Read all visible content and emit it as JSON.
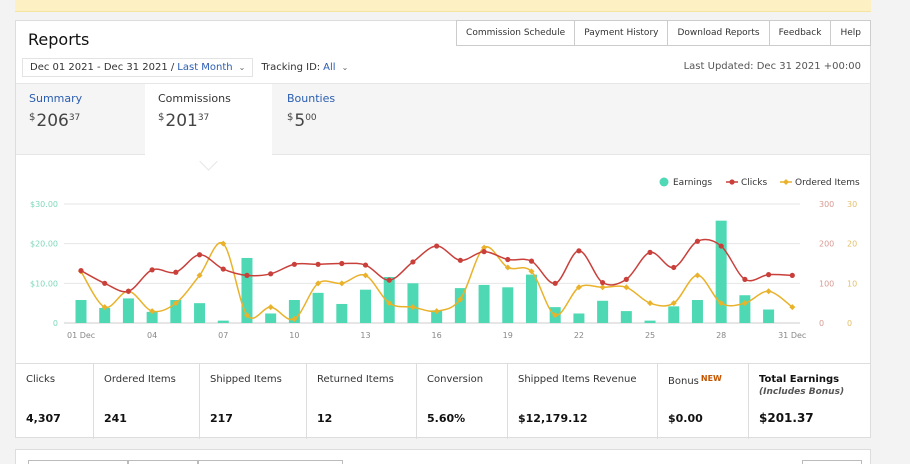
{
  "header": {
    "title": "Reports",
    "buttons": [
      "Commission Schedule",
      "Payment History",
      "Download Reports",
      "Feedback",
      "Help"
    ]
  },
  "filters": {
    "date_range": "Dec 01 2021 - Dec 31 2021 /",
    "date_preset": "Last Month",
    "tracking_label": "Tracking ID:",
    "tracking_value": "All"
  },
  "last_updated": "Last Updated: Dec 31 2021 +00:00",
  "tabs": [
    {
      "label": "Summary",
      "currency": "$",
      "whole": "206",
      "decimal": "37",
      "active": false
    },
    {
      "label": "Commissions",
      "currency": "$",
      "whole": "201",
      "decimal": "37",
      "active": true
    },
    {
      "label": "Bounties",
      "currency": "$",
      "whole": "5",
      "decimal": "00",
      "active": false
    }
  ],
  "colors": {
    "earnings": "#4fd8b4",
    "clicks": "#c9403b",
    "ordered_items": "#e9b22a",
    "link": "#2a5db0"
  },
  "chart_data": {
    "type": "bar",
    "x": [
      1,
      2,
      3,
      4,
      5,
      6,
      7,
      8,
      9,
      10,
      11,
      12,
      13,
      14,
      15,
      16,
      17,
      18,
      19,
      20,
      21,
      22,
      23,
      24,
      25,
      26,
      27,
      28,
      29,
      30,
      31
    ],
    "x_tick_labels": [
      "01 Dec",
      "04",
      "07",
      "10",
      "13",
      "16",
      "19",
      "22",
      "25",
      "28",
      "31 Dec"
    ],
    "series": [
      {
        "name": "Earnings",
        "type": "bar",
        "axis": "left",
        "values": [
          5.8,
          3.8,
          6.2,
          2.8,
          5.8,
          5.0,
          0.6,
          16.4,
          2.4,
          5.8,
          7.6,
          4.8,
          8.4,
          11.6,
          10.0,
          3.2,
          8.8,
          9.6,
          9.0,
          12.2,
          4.0,
          2.4,
          5.6,
          3.0,
          0.6,
          4.2,
          5.8,
          25.8,
          7.0,
          3.4,
          0.0
        ]
      },
      {
        "name": "Clicks",
        "type": "line",
        "axis": "right",
        "values": [
          132,
          100,
          80,
          134,
          128,
          172,
          136,
          120,
          124,
          148,
          148,
          150,
          146,
          108,
          154,
          194,
          158,
          180,
          160,
          156,
          100,
          182,
          102,
          110,
          178,
          140,
          206,
          194,
          110,
          122,
          120
        ]
      },
      {
        "name": "Ordered Items",
        "type": "line",
        "axis": "right2",
        "values": [
          13,
          4,
          8,
          3,
          5,
          12,
          20,
          2,
          4,
          1,
          10,
          10,
          12,
          5,
          4,
          3,
          6,
          19,
          14,
          13,
          2,
          9,
          9,
          9,
          5,
          5,
          12,
          5,
          5,
          8,
          4
        ]
      }
    ],
    "y_left": {
      "ticks": [
        "0",
        "$10.00",
        "$20.00",
        "$30.00"
      ],
      "range": [
        0,
        30
      ]
    },
    "y_right": {
      "ticks": [
        "0",
        "100",
        "200",
        "300"
      ],
      "range": [
        0,
        300
      ]
    },
    "y_right2": {
      "ticks": [
        "0",
        "10",
        "20",
        "30"
      ],
      "range": [
        0,
        30
      ]
    },
    "legend": [
      "Earnings",
      "Clicks",
      "Ordered Items"
    ],
    "legend_position": "top-right",
    "grid": true
  },
  "stats": [
    {
      "label": "Clicks",
      "value": "4,307"
    },
    {
      "label": "Ordered Items",
      "value": "241"
    },
    {
      "label": "Shipped Items",
      "value": "217"
    },
    {
      "label": "Returned Items",
      "value": "12"
    },
    {
      "label": "Conversion",
      "value": "5.60%"
    },
    {
      "label": "Shipped Items Revenue",
      "value": "$12,179.12"
    },
    {
      "label": "Bonus",
      "badge": "NEW",
      "value": "$0.00"
    },
    {
      "label": "Total Earnings",
      "sublabel": "(Includes Bonus)",
      "value": "$201.37"
    }
  ]
}
